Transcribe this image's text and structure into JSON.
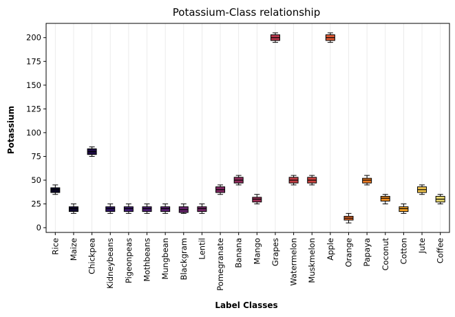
{
  "chart_data": {
    "type": "box",
    "title": "Potassium-Class relationship",
    "xlabel": "Label Classes",
    "ylabel": "Potassium",
    "ylim": [
      -5,
      215
    ],
    "yticks": [
      0,
      25,
      50,
      75,
      100,
      125,
      150,
      175,
      200
    ],
    "grid": "vertical",
    "categories": [
      "Rice",
      "Maize",
      "Chickpea",
      "Kidneybeans",
      "Pigeonpeas",
      "Mothbeans",
      "Mungbean",
      "Blackgram",
      "Lentil",
      "Pomegranate",
      "Banana",
      "Mango",
      "Grapes",
      "Watermelon",
      "Muskmelon",
      "Apple",
      "Orange",
      "Papaya",
      "Coconut",
      "Cotton",
      "Jute",
      "Coffee"
    ],
    "boxes": [
      {
        "min": 35,
        "q1": 37,
        "median": 40,
        "q3": 42,
        "max": 45,
        "color": "#0b0826"
      },
      {
        "min": 15,
        "q1": 17,
        "median": 20,
        "q3": 22,
        "max": 25,
        "color": "#110a30"
      },
      {
        "min": 75,
        "q1": 77,
        "median": 80,
        "q3": 83,
        "max": 85,
        "color": "#1e0c45"
      },
      {
        "min": 15,
        "q1": 17,
        "median": 20,
        "q3": 22,
        "max": 25,
        "color": "#2d1160"
      },
      {
        "min": 15,
        "q1": 17,
        "median": 20,
        "q3": 22,
        "max": 25,
        "color": "#3e1a6f"
      },
      {
        "min": 15,
        "q1": 17,
        "median": 20,
        "q3": 22,
        "max": 25,
        "color": "#4a1c6f"
      },
      {
        "min": 15,
        "q1": 17,
        "median": 20,
        "q3": 22,
        "max": 25,
        "color": "#57206e"
      },
      {
        "min": 15,
        "q1": 16,
        "median": 19,
        "q3": 22,
        "max": 25,
        "color": "#65226b"
      },
      {
        "min": 15,
        "q1": 17,
        "median": 20,
        "q3": 22,
        "max": 25,
        "color": "#732567"
      },
      {
        "min": 35,
        "q1": 37,
        "median": 40,
        "q3": 43,
        "max": 45,
        "color": "#812862"
      },
      {
        "min": 45,
        "q1": 47,
        "median": 50,
        "q3": 53,
        "max": 55,
        "color": "#902c5c"
      },
      {
        "min": 25,
        "q1": 27,
        "median": 30,
        "q3": 32,
        "max": 35,
        "color": "#9c2e56"
      },
      {
        "min": 195,
        "q1": 197,
        "median": 200,
        "q3": 203,
        "max": 205,
        "color": "#b6374c"
      },
      {
        "min": 45,
        "q1": 47,
        "median": 50,
        "q3": 53,
        "max": 55,
        "color": "#c13e45"
      },
      {
        "min": 45,
        "q1": 47,
        "median": 50,
        "q3": 53,
        "max": 55,
        "color": "#cc4541"
      },
      {
        "min": 195,
        "q1": 197,
        "median": 200,
        "q3": 203,
        "max": 205,
        "color": "#dd5a35"
      },
      {
        "min": 5,
        "q1": 8,
        "median": 10,
        "q3": 12,
        "max": 15,
        "color": "#e3692a"
      },
      {
        "min": 45,
        "q1": 47,
        "median": 50,
        "q3": 52,
        "max": 55,
        "color": "#e97a23"
      },
      {
        "min": 25,
        "q1": 28,
        "median": 31,
        "q3": 33,
        "max": 35,
        "color": "#ed8a1e"
      },
      {
        "min": 15,
        "q1": 17,
        "median": 20,
        "q3": 22,
        "max": 25,
        "color": "#f09e24"
      },
      {
        "min": 35,
        "q1": 37,
        "median": 40,
        "q3": 43,
        "max": 45,
        "color": "#efc34e"
      },
      {
        "min": 25,
        "q1": 27,
        "median": 30,
        "q3": 33,
        "max": 35,
        "color": "#e5d56e"
      }
    ]
  }
}
